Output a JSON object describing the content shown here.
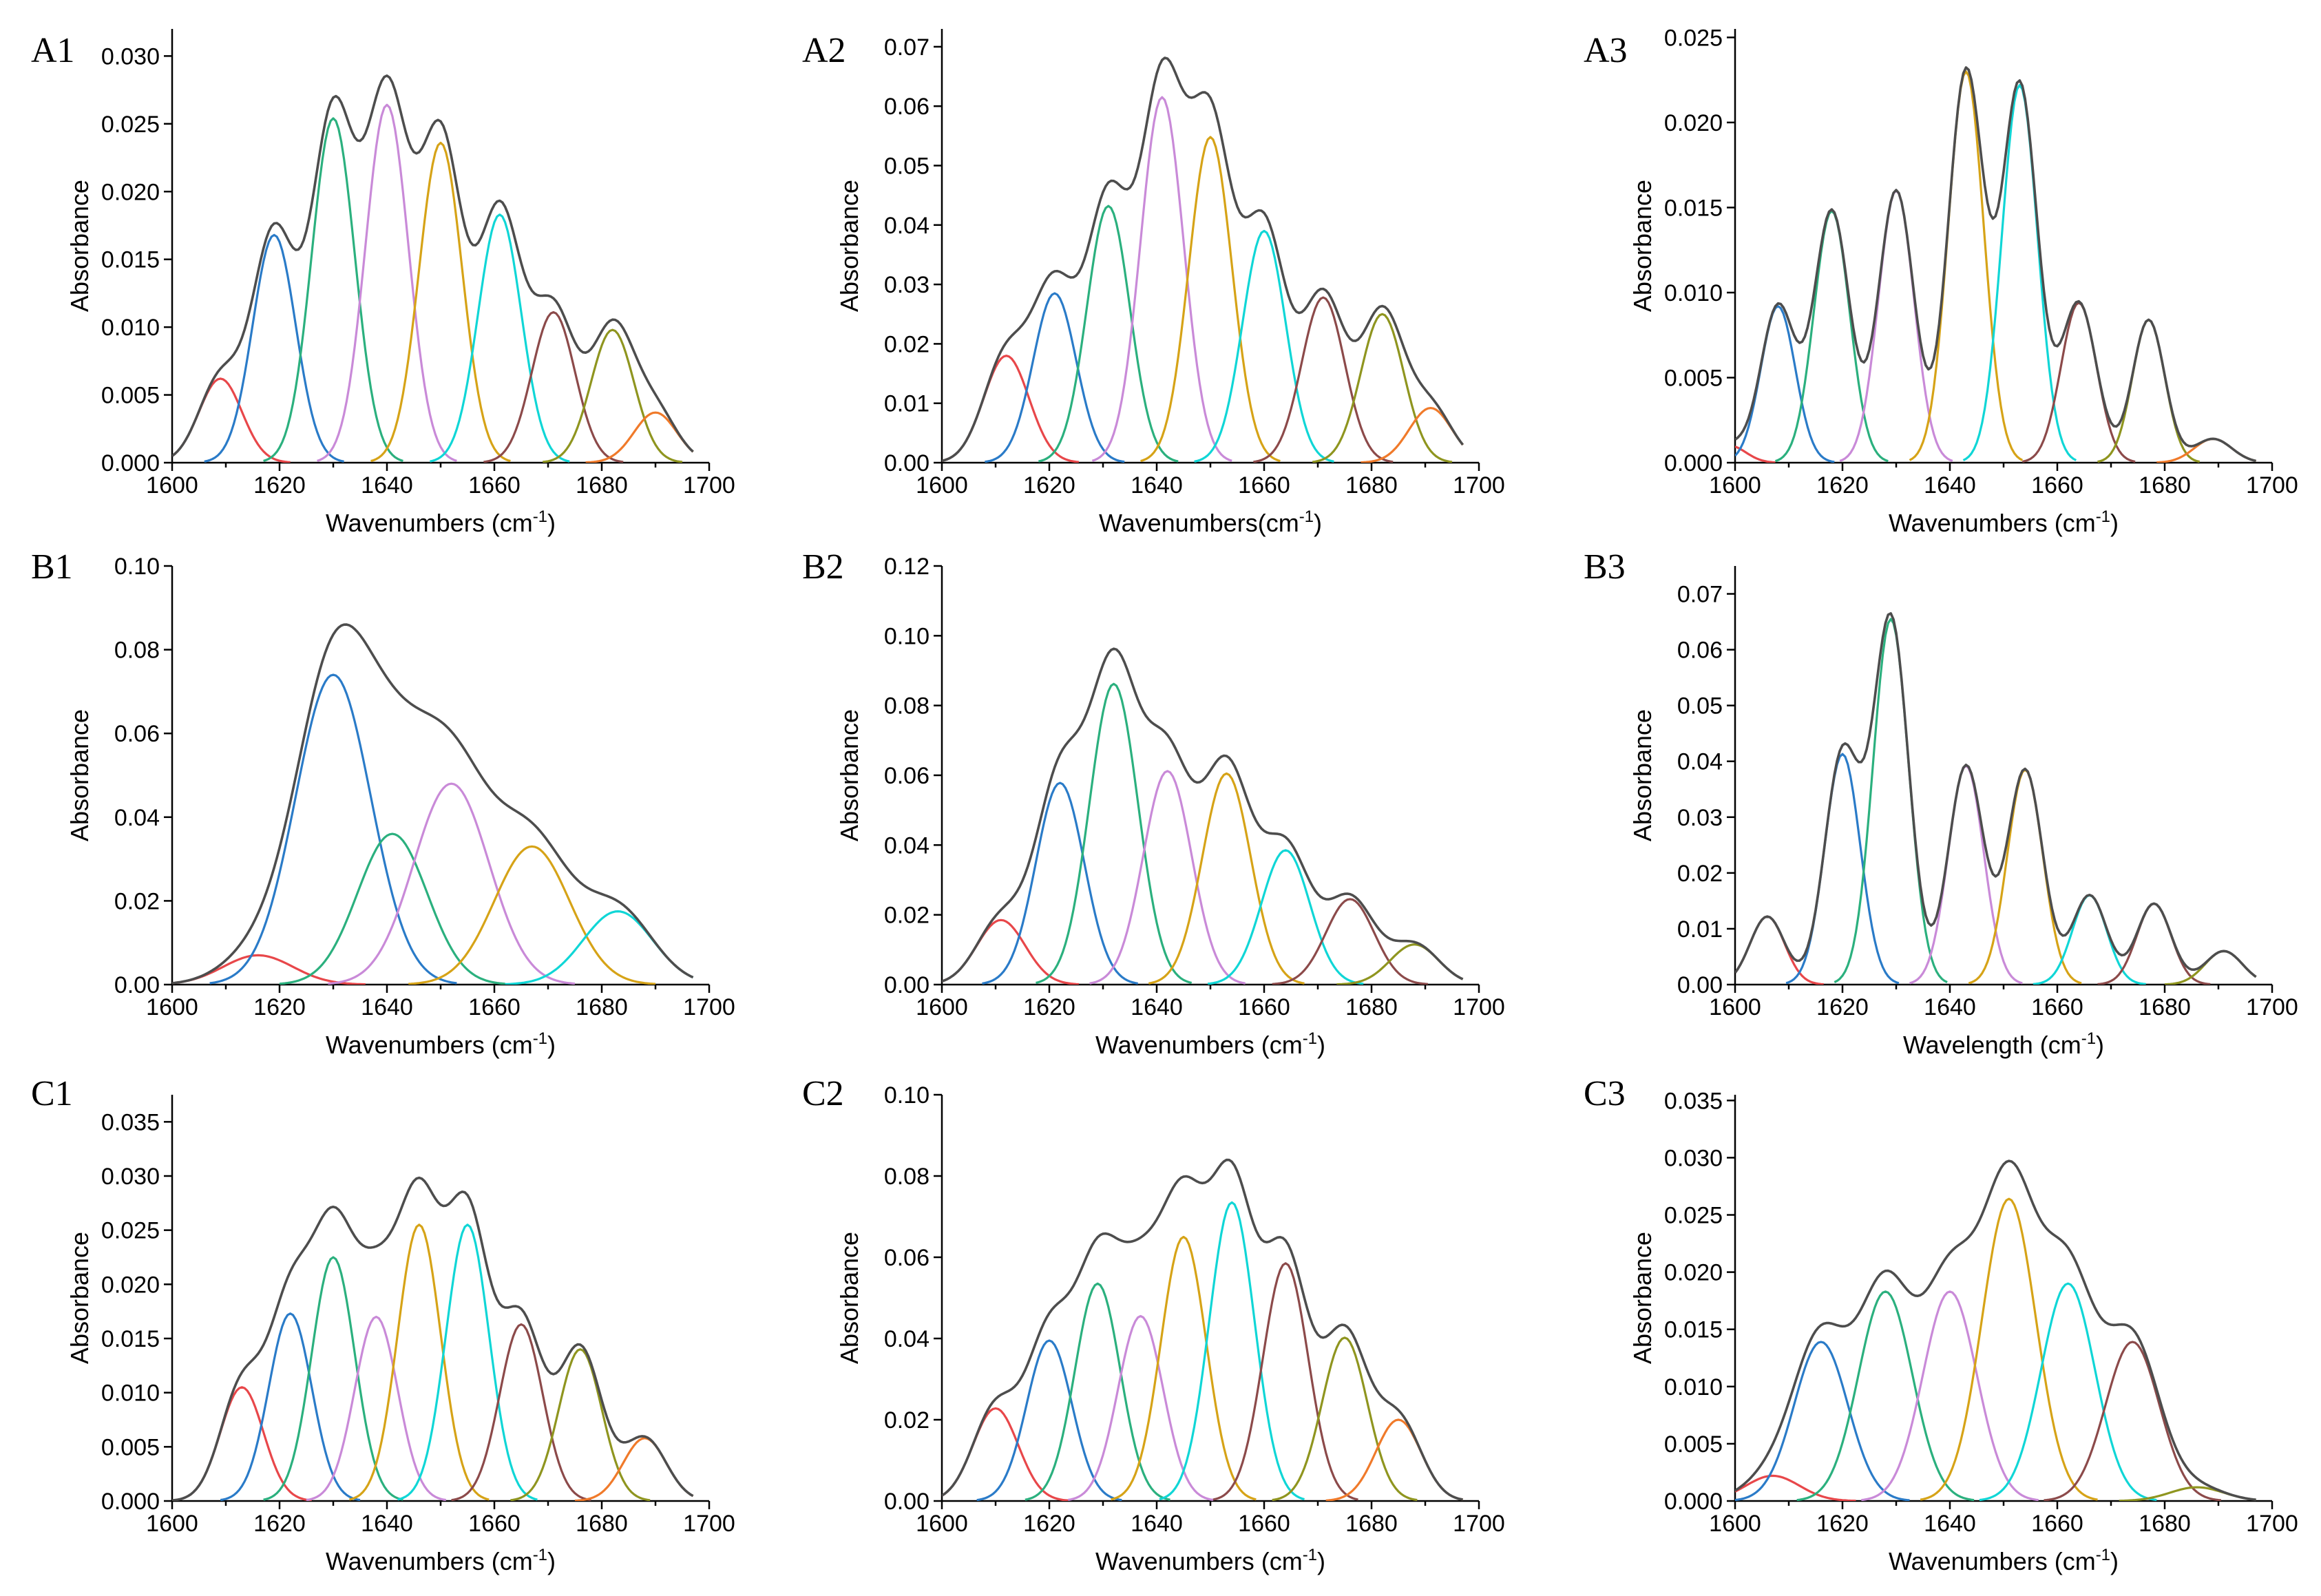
{
  "colors": {
    "envelope": "#4d4d4d",
    "peaks": [
      "#e8474a",
      "#2a7bc8",
      "#2bb07e",
      "#c98ad8",
      "#d6a317",
      "#10d6d6",
      "#8c4a4a",
      "#8f951f",
      "#f07a2a"
    ]
  },
  "chart_data": [
    {
      "id": "A1",
      "type": "line",
      "label": "A1",
      "xlabel": "Wavenumbers (cm",
      "xlabel_sup": "-1",
      "xlabel_end": ")",
      "ylabel": "Absorbance",
      "xlim": [
        1600,
        1700
      ],
      "ylim": [
        0,
        0.032
      ],
      "xticks": [
        "1600",
        "1620",
        "1640",
        "1660",
        "1680",
        "1700"
      ],
      "yticks": [
        "0.000",
        "0.005",
        "0.010",
        "0.015",
        "0.020",
        "0.025",
        "0.030"
      ],
      "series": [
        {
          "center": 1609,
          "amplitude": 0.0062,
          "width": 4.0
        },
        {
          "center": 1619,
          "amplitude": 0.0168,
          "width": 4.0
        },
        {
          "center": 1630,
          "amplitude": 0.0254,
          "width": 4.0
        },
        {
          "center": 1640,
          "amplitude": 0.0264,
          "width": 4.0
        },
        {
          "center": 1650,
          "amplitude": 0.0236,
          "width": 4.0
        },
        {
          "center": 1661,
          "amplitude": 0.0183,
          "width": 4.0
        },
        {
          "center": 1671,
          "amplitude": 0.0111,
          "width": 4.0
        },
        {
          "center": 1682,
          "amplitude": 0.0098,
          "width": 4.0
        },
        {
          "center": 1690,
          "amplitude": 0.0037,
          "width": 4.0
        }
      ]
    },
    {
      "id": "A2",
      "type": "line",
      "label": "A2",
      "xlabel": "Wavenumbers(cm",
      "xlabel_sup": "-1",
      "xlabel_end": ")",
      "ylabel": "Absorbance",
      "xlim": [
        1600,
        1700
      ],
      "ylim": [
        0,
        0.073
      ],
      "xticks": [
        "1600",
        "1620",
        "1640",
        "1660",
        "1680",
        "1700"
      ],
      "yticks": [
        "0.00",
        "0.01",
        "0.02",
        "0.03",
        "0.04",
        "0.05",
        "0.06",
        "0.07"
      ],
      "series": [
        {
          "center": 1612,
          "amplitude": 0.018,
          "width": 4.2
        },
        {
          "center": 1621,
          "amplitude": 0.0285,
          "width": 4.0
        },
        {
          "center": 1631,
          "amplitude": 0.0432,
          "width": 4.0
        },
        {
          "center": 1641,
          "amplitude": 0.0615,
          "width": 4.0
        },
        {
          "center": 1650,
          "amplitude": 0.0548,
          "width": 4.0
        },
        {
          "center": 1660,
          "amplitude": 0.039,
          "width": 4.0
        },
        {
          "center": 1671,
          "amplitude": 0.0278,
          "width": 4.0
        },
        {
          "center": 1682,
          "amplitude": 0.025,
          "width": 4.0
        },
        {
          "center": 1691,
          "amplitude": 0.0092,
          "width": 4.0
        }
      ]
    },
    {
      "id": "A3",
      "type": "line",
      "label": "A3",
      "xlabel": "Wavenumbers (cm",
      "xlabel_sup": "-1",
      "xlabel_end": ")",
      "ylabel": "Absorbance",
      "xlim": [
        1600,
        1700
      ],
      "ylim": [
        0,
        0.0255
      ],
      "xticks": [
        "1600",
        "1620",
        "1640",
        "1660",
        "1680",
        "1700"
      ],
      "yticks": [
        "0.000",
        "0.005",
        "0.010",
        "0.015",
        "0.020",
        "0.025"
      ],
      "series": [
        {
          "center": 1599,
          "amplitude": 0.001,
          "width": 3.0
        },
        {
          "center": 1608,
          "amplitude": 0.0092,
          "width": 3.2
        },
        {
          "center": 1618,
          "amplitude": 0.0148,
          "width": 3.3
        },
        {
          "center": 1630,
          "amplitude": 0.016,
          "width": 3.3
        },
        {
          "center": 1643,
          "amplitude": 0.023,
          "width": 3.3
        },
        {
          "center": 1653,
          "amplitude": 0.0222,
          "width": 3.3
        },
        {
          "center": 1664,
          "amplitude": 0.0094,
          "width": 3.3
        },
        {
          "center": 1677,
          "amplitude": 0.0084,
          "width": 3.0
        },
        {
          "center": 1689,
          "amplitude": 0.0014,
          "width": 3.5
        }
      ]
    },
    {
      "id": "B1",
      "type": "line",
      "label": "B1",
      "xlabel": "Wavenumbers (cm",
      "xlabel_sup": "-1",
      "xlabel_end": ")",
      "ylabel": "Absorbance",
      "xlim": [
        1600,
        1700
      ],
      "ylim": [
        0,
        0.1
      ],
      "xticks": [
        "1600",
        "1620",
        "1640",
        "1660",
        "1680",
        "1700"
      ],
      "yticks": [
        "0.00",
        "0.02",
        "0.04",
        "0.06",
        "0.08",
        "0.10"
      ],
      "series": [
        {
          "center": 1616,
          "amplitude": 0.007,
          "width": 6.5
        },
        {
          "center": 1630,
          "amplitude": 0.074,
          "width": 7.0
        },
        {
          "center": 1641,
          "amplitude": 0.036,
          "width": 6.5
        },
        {
          "center": 1652,
          "amplitude": 0.048,
          "width": 7.0
        },
        {
          "center": 1667,
          "amplitude": 0.033,
          "width": 7.0
        },
        {
          "center": 1683,
          "amplitude": 0.0175,
          "width": 6.5
        }
      ]
    },
    {
      "id": "B2",
      "type": "line",
      "label": "B2",
      "xlabel": "Wavenumbers (cm",
      "xlabel_sup": "-1",
      "xlabel_end": ")",
      "ylabel": "Absorbance",
      "xlim": [
        1600,
        1700
      ],
      "ylim": [
        0,
        0.12
      ],
      "xticks": [
        "1600",
        "1620",
        "1640",
        "1660",
        "1680",
        "1700"
      ],
      "yticks": [
        "0.00",
        "0.02",
        "0.04",
        "0.06",
        "0.08",
        "0.10",
        "0.12"
      ],
      "series": [
        {
          "center": 1611,
          "amplitude": 0.0185,
          "width": 4.5
        },
        {
          "center": 1622,
          "amplitude": 0.0578,
          "width": 4.5
        },
        {
          "center": 1632,
          "amplitude": 0.0862,
          "width": 4.5
        },
        {
          "center": 1642,
          "amplitude": 0.0612,
          "width": 4.5
        },
        {
          "center": 1653,
          "amplitude": 0.0605,
          "width": 4.5
        },
        {
          "center": 1664,
          "amplitude": 0.0385,
          "width": 4.5
        },
        {
          "center": 1676,
          "amplitude": 0.0245,
          "width": 4.5
        },
        {
          "center": 1688,
          "amplitude": 0.0115,
          "width": 4.5
        }
      ]
    },
    {
      "id": "B3",
      "type": "line",
      "label": "B3",
      "xlabel": "Wavelength (cm",
      "xlabel_sup": "-1",
      "xlabel_end": ")",
      "ylabel": "Absorbance",
      "xlim": [
        1600,
        1700
      ],
      "ylim": [
        0,
        0.075
      ],
      "xticks": [
        "1600",
        "1620",
        "1640",
        "1660",
        "1680",
        "1700"
      ],
      "yticks": [
        "0.00",
        "0.01",
        "0.02",
        "0.03",
        "0.04",
        "0.05",
        "0.06",
        "0.07"
      ],
      "series": [
        {
          "center": 1606,
          "amplitude": 0.0122,
          "width": 3.2
        },
        {
          "center": 1620,
          "amplitude": 0.0413,
          "width": 3.3
        },
        {
          "center": 1629,
          "amplitude": 0.0655,
          "width": 3.3
        },
        {
          "center": 1643,
          "amplitude": 0.0392,
          "width": 3.3
        },
        {
          "center": 1654,
          "amplitude": 0.0385,
          "width": 3.3
        },
        {
          "center": 1666,
          "amplitude": 0.016,
          "width": 3.2
        },
        {
          "center": 1678,
          "amplitude": 0.0145,
          "width": 3.2
        },
        {
          "center": 1691,
          "amplitude": 0.006,
          "width": 3.5
        }
      ]
    },
    {
      "id": "C1",
      "type": "line",
      "label": "C1",
      "xlabel": "Wavenumbers (cm",
      "xlabel_sup": "-1",
      "xlabel_end": ")",
      "ylabel": "Absorbance",
      "xlim": [
        1600,
        1700
      ],
      "ylim": [
        0,
        0.0375
      ],
      "xticks": [
        "1600",
        "1620",
        "1640",
        "1660",
        "1680",
        "1700"
      ],
      "yticks": [
        "0.000",
        "0.005",
        "0.010",
        "0.015",
        "0.020",
        "0.025",
        "0.030",
        "0.035"
      ],
      "series": [
        {
          "center": 1613,
          "amplitude": 0.0105,
          "width": 4.0
        },
        {
          "center": 1622,
          "amplitude": 0.0173,
          "width": 4.0
        },
        {
          "center": 1630,
          "amplitude": 0.0225,
          "width": 4.0
        },
        {
          "center": 1638,
          "amplitude": 0.017,
          "width": 4.0
        },
        {
          "center": 1646,
          "amplitude": 0.0255,
          "width": 4.0
        },
        {
          "center": 1655,
          "amplitude": 0.0255,
          "width": 4.0
        },
        {
          "center": 1665,
          "amplitude": 0.0163,
          "width": 4.0
        },
        {
          "center": 1676,
          "amplitude": 0.014,
          "width": 4.0
        },
        {
          "center": 1688,
          "amplitude": 0.0058,
          "width": 4.0
        }
      ]
    },
    {
      "id": "C2",
      "type": "line",
      "label": "C2",
      "xlabel": "Wavenumbers (cm",
      "xlabel_sup": "-1",
      "xlabel_end": ")",
      "ylabel": "Absorbance",
      "xlim": [
        1600,
        1700
      ],
      "ylim": [
        0,
        0.1
      ],
      "xticks": [
        "1600",
        "1620",
        "1640",
        "1660",
        "1680",
        "1700"
      ],
      "yticks": [
        "0.00",
        "0.02",
        "0.04",
        "0.06",
        "0.08",
        "0.10"
      ],
      "series": [
        {
          "center": 1610,
          "amplitude": 0.0228,
          "width": 4.2
        },
        {
          "center": 1620,
          "amplitude": 0.0395,
          "width": 4.2
        },
        {
          "center": 1629,
          "amplitude": 0.0535,
          "width": 4.2
        },
        {
          "center": 1637,
          "amplitude": 0.0455,
          "width": 4.2
        },
        {
          "center": 1645,
          "amplitude": 0.065,
          "width": 4.2
        },
        {
          "center": 1654,
          "amplitude": 0.0735,
          "width": 4.2
        },
        {
          "center": 1664,
          "amplitude": 0.0585,
          "width": 4.2
        },
        {
          "center": 1675,
          "amplitude": 0.0402,
          "width": 4.2
        },
        {
          "center": 1685,
          "amplitude": 0.02,
          "width": 4.2
        }
      ]
    },
    {
      "id": "C3",
      "type": "line",
      "label": "C3",
      "xlabel": "Wavenumbers (cm",
      "xlabel_sup": "-1",
      "xlabel_end": ")",
      "ylabel": "Absorbance",
      "xlim": [
        1600,
        1700
      ],
      "ylim": [
        0,
        0.0355
      ],
      "xticks": [
        "1600",
        "1620",
        "1640",
        "1660",
        "1680",
        "1700"
      ],
      "yticks": [
        "0.000",
        "0.005",
        "0.010",
        "0.015",
        "0.020",
        "0.025",
        "0.030",
        "0.035"
      ],
      "series": [
        {
          "center": 1607,
          "amplitude": 0.0022,
          "width": 5.0
        },
        {
          "center": 1616,
          "amplitude": 0.0139,
          "width": 5.0
        },
        {
          "center": 1628,
          "amplitude": 0.0183,
          "width": 5.0
        },
        {
          "center": 1640,
          "amplitude": 0.0183,
          "width": 5.0
        },
        {
          "center": 1651,
          "amplitude": 0.0264,
          "width": 5.0
        },
        {
          "center": 1662,
          "amplitude": 0.019,
          "width": 5.0
        },
        {
          "center": 1674,
          "amplitude": 0.0139,
          "width": 5.0
        },
        {
          "center": 1686,
          "amplitude": 0.0012,
          "width": 5.0
        }
      ]
    }
  ]
}
